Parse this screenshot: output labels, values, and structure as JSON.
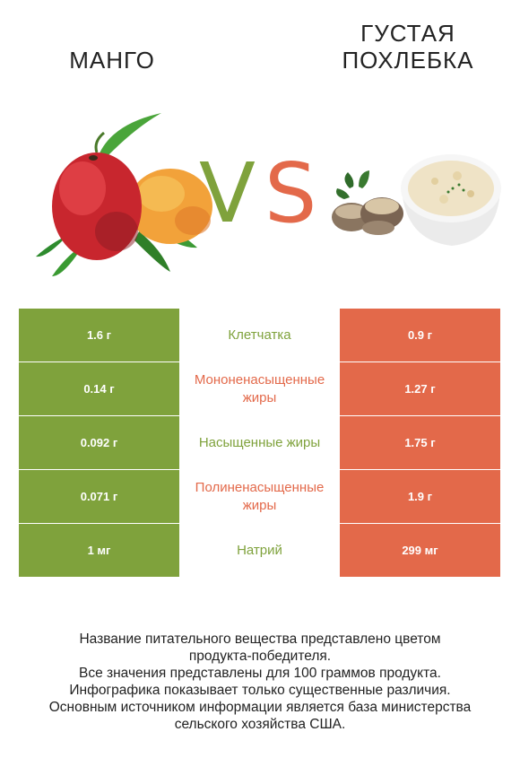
{
  "header": {
    "left_title": "МАНГО",
    "right_title_line1": "ГУСТАЯ",
    "right_title_line2": "ПОХЛЕБКА",
    "vs_v": "V",
    "vs_s": "S"
  },
  "colors": {
    "left_accent": "#7fa23c",
    "right_accent": "#e3694a"
  },
  "images": {
    "left": "mango-illustration",
    "right": "clam-chowder-bowl-illustration"
  },
  "table": {
    "rows": [
      {
        "left": "1.6 г",
        "nutrient": "Клетчатка",
        "right": "0.9 г",
        "winner": "left"
      },
      {
        "left": "0.14 г",
        "nutrient": "Мононенасыщенные жиры",
        "right": "1.27 г",
        "winner": "right"
      },
      {
        "left": "0.092 г",
        "nutrient": "Насыщенные жиры",
        "right": "1.75 г",
        "winner": "left"
      },
      {
        "left": "0.071 г",
        "nutrient": "Полиненасыщенные жиры",
        "right": "1.9 г",
        "winner": "right"
      },
      {
        "left": "1 мг",
        "nutrient": "Натрий",
        "right": "299 мг",
        "winner": "left"
      }
    ]
  },
  "footnote": {
    "line1": "Название питательного вещества представлено цветом",
    "line2": "продукта-победителя.",
    "line3": "Все значения представлены для 100 граммов продукта.",
    "line4": "Инфографика показывает только существенные различия.",
    "line5": "Основным источником информации является база министерства",
    "line6": "сельского хозяйства США."
  }
}
